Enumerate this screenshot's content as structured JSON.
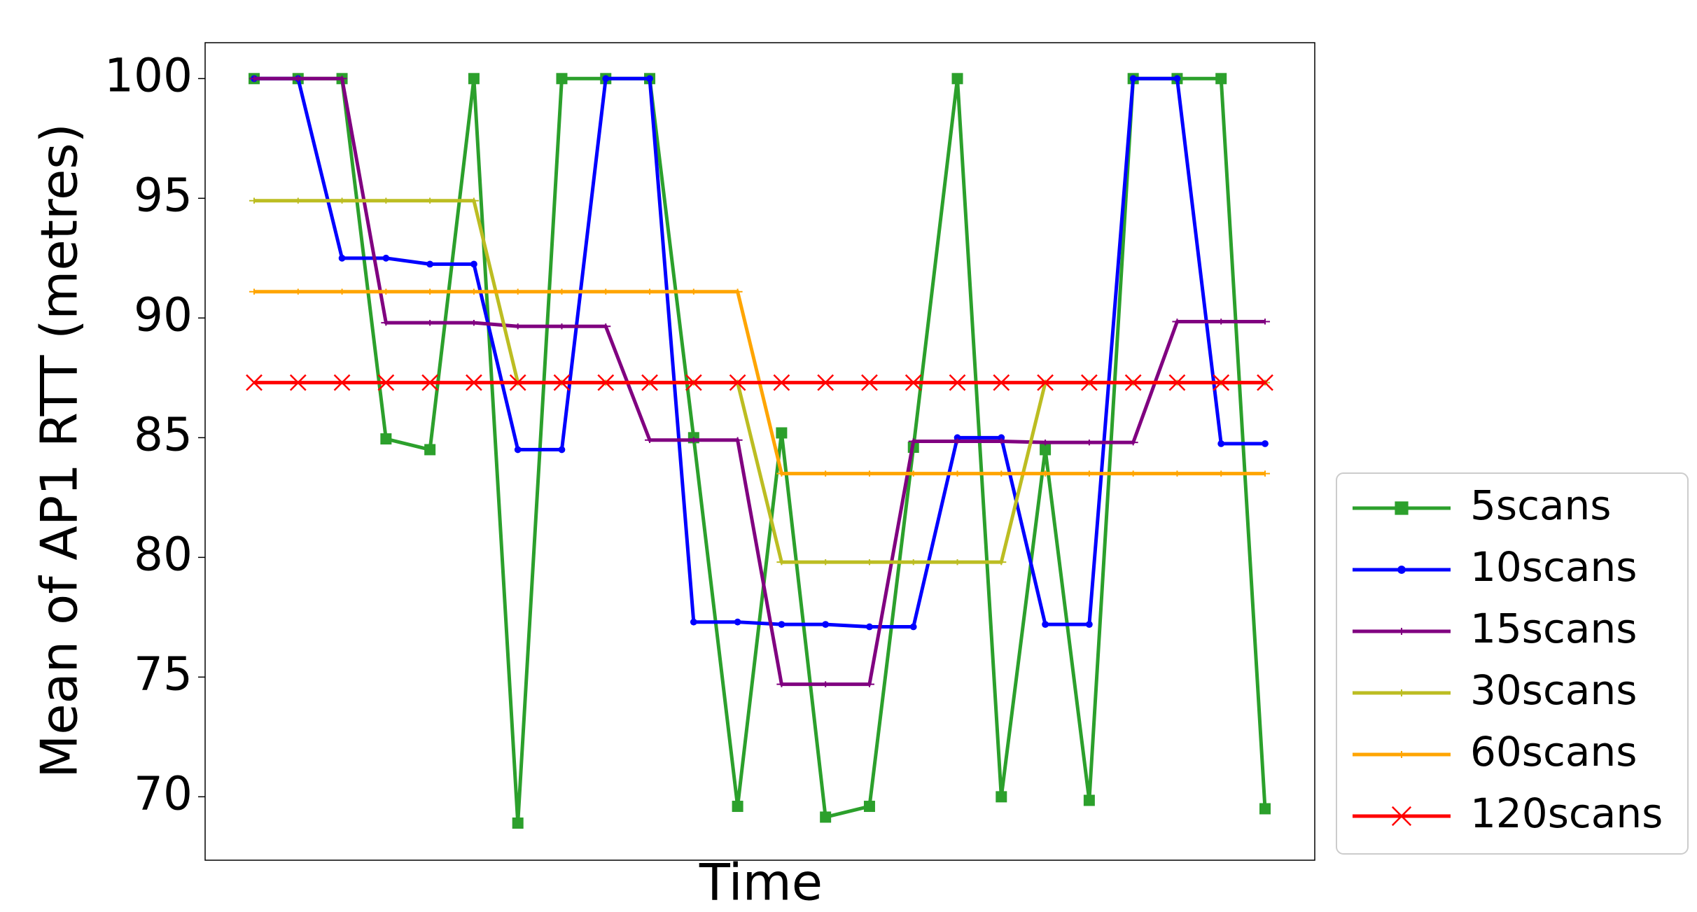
{
  "chart_data": {
    "type": "line",
    "x_label": "Time",
    "y_label": "Mean of AP1 RTT (metres)",
    "categories": [
      null,
      null,
      null,
      null,
      null,
      null,
      null,
      null,
      null,
      null,
      null,
      null,
      null,
      null,
      null,
      null,
      null,
      null,
      null,
      null,
      null,
      null,
      null,
      null
    ],
    "ylim": [
      67.35,
      101.5
    ],
    "yticks": [
      70,
      75,
      80,
      85,
      90,
      95,
      100
    ],
    "legend": "right",
    "series": [
      {
        "name": "5scans",
        "color": "#2ca02c",
        "marker": "square",
        "values": [
          100,
          100,
          100,
          84.95,
          84.5,
          100,
          68.9,
          100,
          100,
          100,
          85.0,
          69.6,
          85.2,
          69.15,
          69.6,
          84.6,
          100,
          70.0,
          84.5,
          69.85,
          100,
          100,
          100,
          69.5
        ]
      },
      {
        "name": "10scans",
        "color": "#0000ff",
        "marker": "circle",
        "values": [
          100,
          100,
          92.5,
          92.5,
          92.25,
          92.25,
          84.5,
          84.5,
          100,
          100,
          77.3,
          77.3,
          77.2,
          77.2,
          77.1,
          77.1,
          85.0,
          85.0,
          77.2,
          77.2,
          100,
          100,
          84.75,
          84.75
        ]
      },
      {
        "name": "15scans",
        "color": "#800080",
        "marker": "plus",
        "values": [
          100,
          100,
          100,
          89.8,
          89.8,
          89.8,
          89.65,
          89.65,
          89.65,
          84.9,
          84.9,
          84.9,
          74.7,
          74.7,
          74.7,
          84.85,
          84.85,
          84.85,
          84.8,
          84.8,
          84.8,
          89.85,
          89.85,
          89.85
        ]
      },
      {
        "name": "30scans",
        "color": "#bcbd22",
        "marker": "plus",
        "values": [
          94.9,
          94.9,
          94.9,
          94.9,
          94.9,
          94.9,
          87.3,
          87.3,
          87.3,
          87.3,
          87.3,
          87.3,
          79.8,
          79.8,
          79.8,
          79.8,
          79.8,
          79.8,
          87.3,
          87.3,
          87.3,
          87.3,
          87.3,
          87.3
        ]
      },
      {
        "name": "60scans",
        "color": "#ffa500",
        "marker": "plus",
        "values": [
          91.1,
          91.1,
          91.1,
          91.1,
          91.1,
          91.1,
          91.1,
          91.1,
          91.1,
          91.1,
          91.1,
          91.1,
          83.5,
          83.5,
          83.5,
          83.5,
          83.5,
          83.5,
          83.5,
          83.5,
          83.5,
          83.5,
          83.5,
          83.5
        ]
      },
      {
        "name": "120scans",
        "color": "#ff0000",
        "marker": "x",
        "values": [
          87.3,
          87.3,
          87.3,
          87.3,
          87.3,
          87.3,
          87.3,
          87.3,
          87.3,
          87.3,
          87.3,
          87.3,
          87.3,
          87.3,
          87.3,
          87.3,
          87.3,
          87.3,
          87.3,
          87.3,
          87.3,
          87.3,
          87.3,
          87.3
        ]
      }
    ]
  }
}
